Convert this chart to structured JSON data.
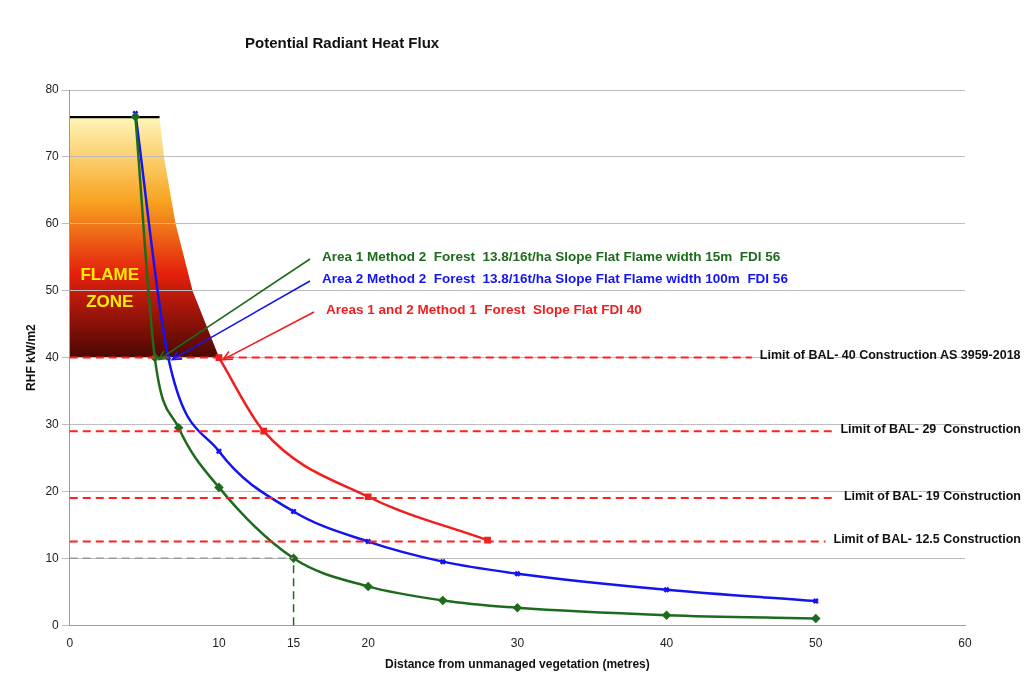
{
  "chart_data": {
    "type": "line",
    "title": "Potential Radiant Heat Flux",
    "xlabel": "Distance from unmanaged vegetation (metres)",
    "ylabel": "RHF kW/m2",
    "xlim": [
      0,
      60
    ],
    "xticks": [
      0,
      10,
      15,
      20,
      30,
      40,
      50,
      60
    ],
    "ylim": [
      0,
      80
    ],
    "yticks": [
      0,
      10,
      20,
      30,
      40,
      50,
      60,
      70,
      80
    ],
    "grid": "y",
    "legend": false,
    "marker": "diamond",
    "series": [
      {
        "name": "Area 1 Method 2  Forest  13.8/16t/ha Slope Flat Flame width 15m  FDI 56",
        "color": "#1e6b1e",
        "x": [
          4.4,
          5.7,
          7.3,
          10,
          15,
          20,
          25,
          30,
          40,
          50
        ],
        "values": [
          76,
          40,
          29.5,
          20.6,
          10,
          5.8,
          3.7,
          2.6,
          1.5,
          1.0
        ]
      },
      {
        "name": "Area 2 Method 2  Forest  13.8/16t/ha Slope Flat Flame width 100m  FDI 56",
        "color": "#1414f0",
        "marker": "cross",
        "x": [
          4.4,
          6.6,
          10,
          15,
          20,
          25,
          30,
          40,
          50
        ],
        "values": [
          76.5,
          40,
          26,
          17,
          12.5,
          9.5,
          7.7,
          5.3,
          3.6
        ]
      },
      {
        "name": "Areas 1 and 2 Method 1  Forest  Slope Flat FDI 40",
        "color": "#f01e1e",
        "marker": "square",
        "x": [
          10,
          13,
          20,
          28
        ],
        "values": [
          40,
          29,
          19.2,
          12.7
        ]
      }
    ],
    "ref_lines": [
      {
        "axis": "y",
        "value": 40,
        "label": "Limit of BAL- 40 Construction AS 3959-2018",
        "color": "#ff2020",
        "line_style": "dashed"
      },
      {
        "axis": "y",
        "value": 29,
        "label": "Limit of BAL- 29  Construction",
        "color": "#ff2020",
        "line_style": "dashed"
      },
      {
        "axis": "y",
        "value": 19,
        "label": "Limit of BAL- 19 Construction",
        "color": "#ff2020",
        "line_style": "dashed"
      },
      {
        "axis": "y",
        "value": 12.5,
        "label": "Limit of BAL- 12.5 Construction",
        "color": "#ff2020",
        "line_style": "dashed"
      },
      {
        "axis": "y",
        "value": 10,
        "color": "#9a9a9a",
        "line_style": "dashed"
      },
      {
        "axis": "x",
        "value": 15,
        "color": "#1e6b1e",
        "line_style": "dashed"
      }
    ],
    "annotations": [
      "FLAME ZONE"
    ]
  }
}
